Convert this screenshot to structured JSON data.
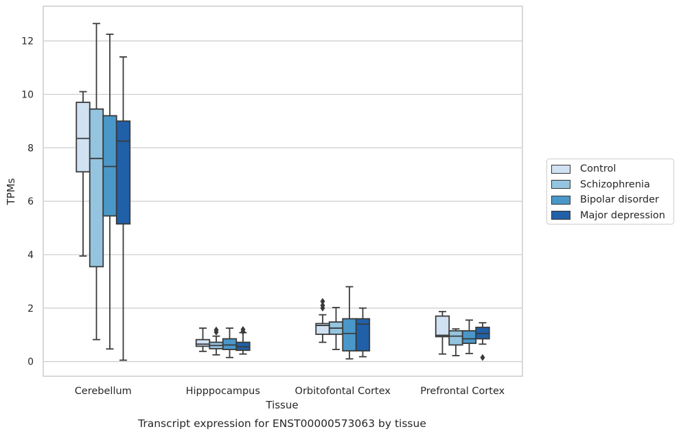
{
  "chart_data": {
    "type": "box",
    "title": "Transcript expression for ENST00000573063 by tissue",
    "xlabel": "Tissue",
    "ylabel": "TPMs",
    "ylim": [
      -0.55,
      13.3
    ],
    "yticks": [
      0,
      2,
      4,
      6,
      8,
      10,
      12
    ],
    "grid": "horizontal",
    "legend_placement": "right",
    "categories": [
      "Cerebellum",
      "Hipppocampus",
      "Orbitofontal Cortex",
      "Prefrontal Cortex"
    ],
    "series": [
      {
        "name": "Control",
        "color": "#d0e1f2",
        "boxes": [
          {
            "whislo": 3.95,
            "q1": 7.1,
            "med": 8.35,
            "q3": 9.7,
            "whishi": 10.1,
            "fliers": []
          },
          {
            "whislo": 0.38,
            "q1": 0.57,
            "med": 0.65,
            "q3": 0.82,
            "whishi": 1.25,
            "fliers": []
          },
          {
            "whislo": 0.72,
            "q1": 1.02,
            "med": 1.35,
            "q3": 1.42,
            "whishi": 1.75,
            "fliers": [
              2.0,
              2.1,
              2.25
            ]
          },
          {
            "whislo": 0.28,
            "q1": 0.93,
            "med": 0.98,
            "q3": 1.7,
            "whishi": 1.87,
            "fliers": []
          }
        ]
      },
      {
        "name": "Schizophrenia",
        "color": "#94c4df",
        "boxes": [
          {
            "whislo": 0.82,
            "q1": 3.55,
            "med": 7.6,
            "q3": 9.45,
            "whishi": 12.65,
            "fliers": []
          },
          {
            "whislo": 0.25,
            "q1": 0.48,
            "med": 0.6,
            "q3": 0.72,
            "whishi": 0.95,
            "fliers": [
              1.1,
              1.18
            ]
          },
          {
            "whislo": 0.45,
            "q1": 1.02,
            "med": 1.25,
            "q3": 1.48,
            "whishi": 2.02,
            "fliers": []
          },
          {
            "whislo": 0.22,
            "q1": 0.62,
            "med": 0.95,
            "q3": 1.15,
            "whishi": 1.22,
            "fliers": []
          }
        ]
      },
      {
        "name": "Bipolar disorder",
        "color": "#4a98c9",
        "boxes": [
          {
            "whislo": 0.47,
            "q1": 5.45,
            "med": 7.3,
            "q3": 9.2,
            "whishi": 12.25,
            "fliers": []
          },
          {
            "whislo": 0.15,
            "q1": 0.45,
            "med": 0.62,
            "q3": 0.85,
            "whishi": 1.25,
            "fliers": []
          },
          {
            "whislo": 0.1,
            "q1": 0.4,
            "med": 1.05,
            "q3": 1.6,
            "whishi": 2.8,
            "fliers": []
          },
          {
            "whislo": 0.3,
            "q1": 0.68,
            "med": 0.85,
            "q3": 1.15,
            "whishi": 1.55,
            "fliers": []
          }
        ]
      },
      {
        "name": "Major depression",
        "color": "#2060a8",
        "boxes": [
          {
            "whislo": 0.05,
            "q1": 5.15,
            "med": 8.25,
            "q3": 9.0,
            "whishi": 11.4,
            "fliers": []
          },
          {
            "whislo": 0.28,
            "q1": 0.42,
            "med": 0.55,
            "q3": 0.72,
            "whishi": 1.08,
            "fliers": [
              1.12,
              1.2
            ]
          },
          {
            "whislo": 0.18,
            "q1": 0.4,
            "med": 1.4,
            "q3": 1.6,
            "whishi": 2.0,
            "fliers": []
          },
          {
            "whislo": 0.65,
            "q1": 0.85,
            "med": 1.05,
            "q3": 1.28,
            "whishi": 1.45,
            "fliers": [
              0.15
            ]
          }
        ]
      }
    ]
  }
}
